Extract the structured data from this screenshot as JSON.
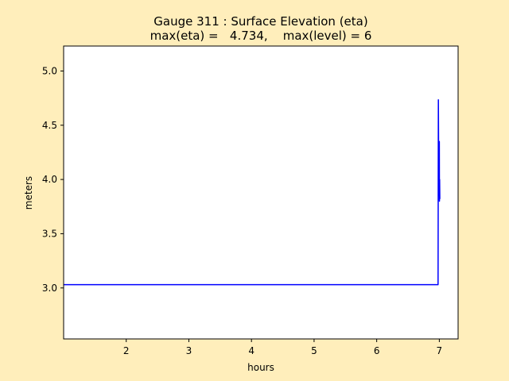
{
  "chart_data": {
    "type": "line",
    "title_line1": "Gauge 311 : Surface Elevation (eta)",
    "title_line2": "max(eta) =   4.734,    max(level) = 6",
    "xlabel": "hours",
    "ylabel": "meters",
    "xlim": [
      1.0,
      7.3
    ],
    "ylim": [
      2.53,
      5.23
    ],
    "xticks": [
      2,
      3,
      4,
      5,
      6,
      7
    ],
    "yticks": [
      3.0,
      3.5,
      4.0,
      4.5,
      5.0
    ],
    "grid": false,
    "background": "#ffeebb",
    "plot_background": "#ffffff",
    "series": [
      {
        "color": "#0000ff",
        "x": [
          1.0,
          6.98,
          6.985,
          6.99,
          6.995,
          7.0,
          7.002,
          7.005,
          7.008
        ],
        "y": [
          3.03,
          3.03,
          4.734,
          4.1,
          3.85,
          4.35,
          3.8,
          4.0,
          3.82
        ]
      }
    ]
  }
}
